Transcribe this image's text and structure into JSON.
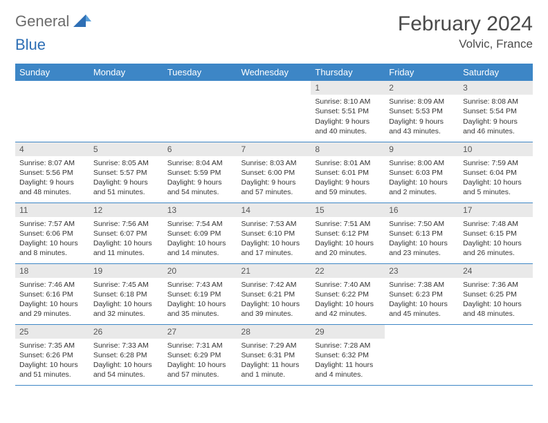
{
  "brand": {
    "word1": "General",
    "word2": "Blue"
  },
  "title": "February 2024",
  "location": "Volvic, France",
  "colors": {
    "header_bg": "#3d86c6",
    "header_text": "#ffffff",
    "daynum_bg": "#e9e9e9",
    "border": "#3d86c6",
    "logo_gray": "#6b6b6b",
    "logo_blue": "#2e6fb5"
  },
  "weekdays": [
    "Sunday",
    "Monday",
    "Tuesday",
    "Wednesday",
    "Thursday",
    "Friday",
    "Saturday"
  ],
  "weeks": [
    [
      null,
      null,
      null,
      null,
      {
        "n": "1",
        "sunrise": "8:10 AM",
        "sunset": "5:51 PM",
        "daylight": "9 hours and 40 minutes."
      },
      {
        "n": "2",
        "sunrise": "8:09 AM",
        "sunset": "5:53 PM",
        "daylight": "9 hours and 43 minutes."
      },
      {
        "n": "3",
        "sunrise": "8:08 AM",
        "sunset": "5:54 PM",
        "daylight": "9 hours and 46 minutes."
      }
    ],
    [
      {
        "n": "4",
        "sunrise": "8:07 AM",
        "sunset": "5:56 PM",
        "daylight": "9 hours and 48 minutes."
      },
      {
        "n": "5",
        "sunrise": "8:05 AM",
        "sunset": "5:57 PM",
        "daylight": "9 hours and 51 minutes."
      },
      {
        "n": "6",
        "sunrise": "8:04 AM",
        "sunset": "5:59 PM",
        "daylight": "9 hours and 54 minutes."
      },
      {
        "n": "7",
        "sunrise": "8:03 AM",
        "sunset": "6:00 PM",
        "daylight": "9 hours and 57 minutes."
      },
      {
        "n": "8",
        "sunrise": "8:01 AM",
        "sunset": "6:01 PM",
        "daylight": "9 hours and 59 minutes."
      },
      {
        "n": "9",
        "sunrise": "8:00 AM",
        "sunset": "6:03 PM",
        "daylight": "10 hours and 2 minutes."
      },
      {
        "n": "10",
        "sunrise": "7:59 AM",
        "sunset": "6:04 PM",
        "daylight": "10 hours and 5 minutes."
      }
    ],
    [
      {
        "n": "11",
        "sunrise": "7:57 AM",
        "sunset": "6:06 PM",
        "daylight": "10 hours and 8 minutes."
      },
      {
        "n": "12",
        "sunrise": "7:56 AM",
        "sunset": "6:07 PM",
        "daylight": "10 hours and 11 minutes."
      },
      {
        "n": "13",
        "sunrise": "7:54 AM",
        "sunset": "6:09 PM",
        "daylight": "10 hours and 14 minutes."
      },
      {
        "n": "14",
        "sunrise": "7:53 AM",
        "sunset": "6:10 PM",
        "daylight": "10 hours and 17 minutes."
      },
      {
        "n": "15",
        "sunrise": "7:51 AM",
        "sunset": "6:12 PM",
        "daylight": "10 hours and 20 minutes."
      },
      {
        "n": "16",
        "sunrise": "7:50 AM",
        "sunset": "6:13 PM",
        "daylight": "10 hours and 23 minutes."
      },
      {
        "n": "17",
        "sunrise": "7:48 AM",
        "sunset": "6:15 PM",
        "daylight": "10 hours and 26 minutes."
      }
    ],
    [
      {
        "n": "18",
        "sunrise": "7:46 AM",
        "sunset": "6:16 PM",
        "daylight": "10 hours and 29 minutes."
      },
      {
        "n": "19",
        "sunrise": "7:45 AM",
        "sunset": "6:18 PM",
        "daylight": "10 hours and 32 minutes."
      },
      {
        "n": "20",
        "sunrise": "7:43 AM",
        "sunset": "6:19 PM",
        "daylight": "10 hours and 35 minutes."
      },
      {
        "n": "21",
        "sunrise": "7:42 AM",
        "sunset": "6:21 PM",
        "daylight": "10 hours and 39 minutes."
      },
      {
        "n": "22",
        "sunrise": "7:40 AM",
        "sunset": "6:22 PM",
        "daylight": "10 hours and 42 minutes."
      },
      {
        "n": "23",
        "sunrise": "7:38 AM",
        "sunset": "6:23 PM",
        "daylight": "10 hours and 45 minutes."
      },
      {
        "n": "24",
        "sunrise": "7:36 AM",
        "sunset": "6:25 PM",
        "daylight": "10 hours and 48 minutes."
      }
    ],
    [
      {
        "n": "25",
        "sunrise": "7:35 AM",
        "sunset": "6:26 PM",
        "daylight": "10 hours and 51 minutes."
      },
      {
        "n": "26",
        "sunrise": "7:33 AM",
        "sunset": "6:28 PM",
        "daylight": "10 hours and 54 minutes."
      },
      {
        "n": "27",
        "sunrise": "7:31 AM",
        "sunset": "6:29 PM",
        "daylight": "10 hours and 57 minutes."
      },
      {
        "n": "28",
        "sunrise": "7:29 AM",
        "sunset": "6:31 PM",
        "daylight": "11 hours and 1 minute."
      },
      {
        "n": "29",
        "sunrise": "7:28 AM",
        "sunset": "6:32 PM",
        "daylight": "11 hours and 4 minutes."
      },
      null,
      null
    ]
  ],
  "labels": {
    "sunrise": "Sunrise: ",
    "sunset": "Sunset: ",
    "daylight": "Daylight: "
  }
}
